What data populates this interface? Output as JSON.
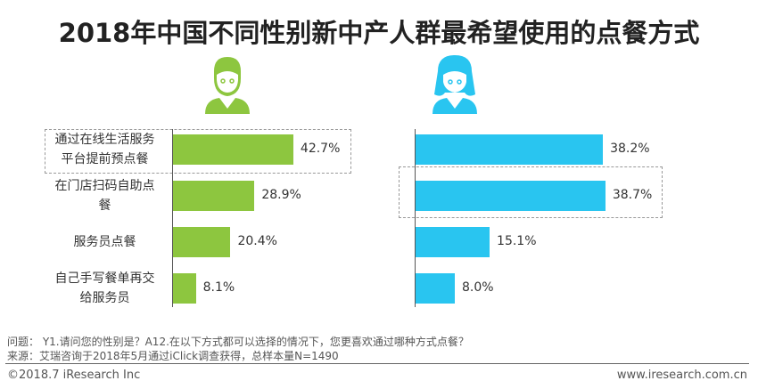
{
  "chart_data": {
    "type": "bar",
    "title": "2018年中国不同性别新中产人群最希望使用的点餐方式",
    "categories": [
      "通过在线生活服务平台提前预点餐",
      "在门店扫码自助点餐",
      "服务员点餐",
      "自己手写餐单再交给服务员"
    ],
    "category_lines": [
      [
        "通过在线生活服务",
        "平台提前预点餐"
      ],
      [
        "在门店扫码自助点",
        "餐"
      ],
      [
        "服务员点餐"
      ],
      [
        "自己手写餐单再交",
        "给服务员"
      ]
    ],
    "series": [
      {
        "icon": "male-person-icon",
        "color": "#8dc63f",
        "values": [
          42.7,
          28.9,
          20.4,
          8.1
        ],
        "labels": [
          "42.7%",
          "28.9%",
          "20.4%",
          "8.1%"
        ]
      },
      {
        "icon": "female-person-icon",
        "color": "#29c5f0",
        "values": [
          38.2,
          38.7,
          15.1,
          8.0
        ],
        "labels": [
          "38.2%",
          "38.7%",
          "15.1%",
          "8.0%"
        ]
      }
    ],
    "orientation": "horizontal"
  },
  "footer": {
    "question": "问题： Y1.请问您的性别是？A12.在以下方式都可以选择的情况下，您更喜欢通过哪种方式点餐？",
    "source": "来源：艾瑞咨询于2018年5月通过iClick调查获得，总样本量N=1490",
    "copyright": "©2018.7 iResearch  Inc",
    "website": "www.iresearch.com.cn"
  }
}
